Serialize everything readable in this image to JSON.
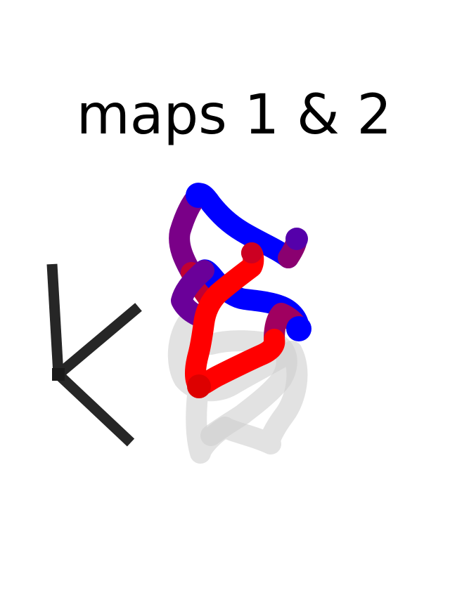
{
  "figure": {
    "title": "maps 1 & 2"
  },
  "colors": {
    "background": "#ffffff",
    "title": "#000000",
    "axes": "#262626",
    "shadow": "#d0d0d0",
    "path_start": "#0000ff",
    "path_end": "#ff0000"
  },
  "legend_glyph": {
    "icon": "axes-tripod-icon",
    "description_visible": false
  },
  "paths": {
    "main_count": 2,
    "shadow_count": 1,
    "gradient": "blue-to-red"
  }
}
